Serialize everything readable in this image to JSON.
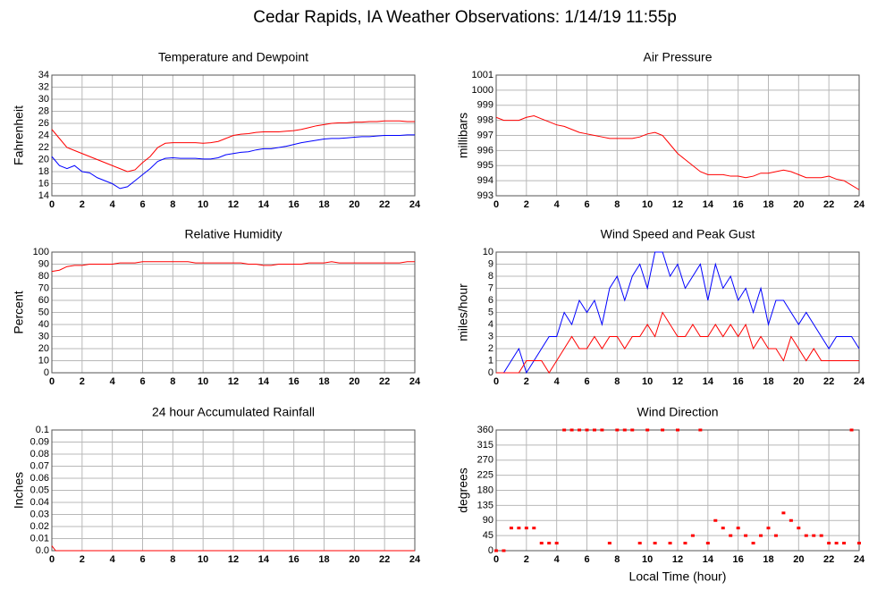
{
  "title": "Cedar Rapids, IA Weather Observations: 1/14/19 11:55p",
  "chart_data": [
    {
      "type": "line",
      "title": "Temperature and Dewpoint",
      "ylabel": "Fahrenheit",
      "x": [
        0,
        0.5,
        1,
        1.5,
        2,
        2.5,
        3,
        3.5,
        4,
        4.5,
        5,
        5.5,
        6,
        6.5,
        7,
        7.5,
        8,
        8.5,
        9,
        9.5,
        10,
        10.5,
        11,
        11.5,
        12,
        12.5,
        13,
        13.5,
        14,
        14.5,
        15,
        15.5,
        16,
        16.5,
        17,
        17.5,
        18,
        18.5,
        19,
        19.5,
        20,
        20.5,
        21,
        21.5,
        22,
        22.5,
        23,
        23.5,
        24
      ],
      "series": [
        {
          "name": "Temperature",
          "color": "#ff0000",
          "values": [
            25,
            23.5,
            22,
            21.5,
            21,
            20.5,
            20,
            19.5,
            19,
            18.5,
            18,
            18.3,
            19.5,
            20.5,
            22,
            22.7,
            22.8,
            22.8,
            22.8,
            22.8,
            22.7,
            22.8,
            23,
            23.5,
            24,
            24.2,
            24.3,
            24.5,
            24.6,
            24.6,
            24.6,
            24.7,
            24.8,
            25,
            25.3,
            25.6,
            25.8,
            26,
            26.1,
            26.1,
            26.2,
            26.2,
            26.3,
            26.3,
            26.4,
            26.4,
            26.4,
            26.3,
            26.3
          ]
        },
        {
          "name": "Dewpoint",
          "color": "#0000ff",
          "values": [
            20.5,
            19,
            18.5,
            19,
            18,
            17.8,
            17,
            16.5,
            16,
            15.2,
            15.5,
            16.5,
            17.5,
            18.5,
            19.7,
            20.2,
            20.3,
            20.2,
            20.2,
            20.2,
            20.1,
            20.1,
            20.3,
            20.8,
            21,
            21.2,
            21.3,
            21.6,
            21.8,
            21.8,
            22,
            22.2,
            22.5,
            22.8,
            23,
            23.2,
            23.4,
            23.5,
            23.5,
            23.6,
            23.7,
            23.8,
            23.8,
            23.9,
            24,
            24,
            24,
            24.1,
            24.1
          ]
        }
      ],
      "xlim": [
        0,
        24
      ],
      "xticks": [
        0,
        2,
        4,
        6,
        8,
        10,
        12,
        14,
        16,
        18,
        20,
        22,
        24
      ],
      "ylim": [
        14,
        34
      ],
      "yticks": [
        14,
        16,
        18,
        20,
        22,
        24,
        26,
        28,
        30,
        32,
        34
      ],
      "grid": true
    },
    {
      "type": "line",
      "title": "Air Pressure",
      "ylabel": "millibars",
      "x": [
        0,
        0.5,
        1,
        1.5,
        2,
        2.5,
        3,
        3.5,
        4,
        4.5,
        5,
        5.5,
        6,
        6.5,
        7,
        7.5,
        8,
        8.5,
        9,
        9.5,
        10,
        10.5,
        11,
        11.5,
        12,
        12.5,
        13,
        13.5,
        14,
        14.5,
        15,
        15.5,
        16,
        16.5,
        17,
        17.5,
        18,
        18.5,
        19,
        19.5,
        20,
        20.5,
        21,
        21.5,
        22,
        22.5,
        23,
        23.5,
        24
      ],
      "series": [
        {
          "name": "Pressure",
          "color": "#ff0000",
          "values": [
            998.2,
            998,
            998,
            998,
            998.2,
            998.3,
            998.1,
            997.9,
            997.7,
            997.6,
            997.4,
            997.2,
            997.1,
            997,
            996.9,
            996.8,
            996.8,
            996.8,
            996.8,
            996.9,
            997.1,
            997.2,
            997,
            996.4,
            995.8,
            995.4,
            995,
            994.6,
            994.4,
            994.4,
            994.4,
            994.3,
            994.3,
            994.2,
            994.3,
            994.5,
            994.5,
            994.6,
            994.7,
            994.6,
            994.4,
            994.2,
            994.2,
            994.2,
            994.3,
            994.1,
            994,
            993.7,
            993.4
          ]
        }
      ],
      "xlim": [
        0,
        24
      ],
      "xticks": [
        0,
        2,
        4,
        6,
        8,
        10,
        12,
        14,
        16,
        18,
        20,
        22,
        24
      ],
      "ylim": [
        993,
        1001
      ],
      "yticks": [
        993,
        994,
        995,
        996,
        997,
        998,
        999,
        1000,
        1001
      ],
      "grid": true
    },
    {
      "type": "line",
      "title": "Relative Humidity",
      "ylabel": "Percent",
      "x": [
        0,
        0.5,
        1,
        1.5,
        2,
        2.5,
        3,
        3.5,
        4,
        4.5,
        5,
        5.5,
        6,
        6.5,
        7,
        7.5,
        8,
        8.5,
        9,
        9.5,
        10,
        10.5,
        11,
        11.5,
        12,
        12.5,
        13,
        13.5,
        14,
        14.5,
        15,
        15.5,
        16,
        16.5,
        17,
        17.5,
        18,
        18.5,
        19,
        19.5,
        20,
        20.5,
        21,
        21.5,
        22,
        22.5,
        23,
        23.5,
        24
      ],
      "series": [
        {
          "name": "Humidity",
          "color": "#ff0000",
          "values": [
            84,
            85,
            88,
            89,
            89,
            90,
            90,
            90,
            90,
            91,
            91,
            91,
            92,
            92,
            92,
            92,
            92,
            92,
            92,
            91,
            91,
            91,
            91,
            91,
            91,
            91,
            90,
            90,
            89,
            89,
            90,
            90,
            90,
            90,
            91,
            91,
            91,
            92,
            91,
            91,
            91,
            91,
            91,
            91,
            91,
            91,
            91,
            92,
            92
          ]
        }
      ],
      "xlim": [
        0,
        24
      ],
      "xticks": [
        0,
        2,
        4,
        6,
        8,
        10,
        12,
        14,
        16,
        18,
        20,
        22,
        24
      ],
      "ylim": [
        0,
        100
      ],
      "yticks": [
        0,
        10,
        20,
        30,
        40,
        50,
        60,
        70,
        80,
        90,
        100
      ],
      "grid": true
    },
    {
      "type": "line",
      "title": "Wind Speed and Peak Gust",
      "ylabel": "miles/hour",
      "x": [
        0,
        0.5,
        1,
        1.5,
        2,
        2.5,
        3,
        3.5,
        4,
        4.5,
        5,
        5.5,
        6,
        6.5,
        7,
        7.5,
        8,
        8.5,
        9,
        9.5,
        10,
        10.5,
        11,
        11.5,
        12,
        12.5,
        13,
        13.5,
        14,
        14.5,
        15,
        15.5,
        16,
        16.5,
        17,
        17.5,
        18,
        18.5,
        19,
        19.5,
        20,
        20.5,
        21,
        21.5,
        22,
        22.5,
        23,
        23.5,
        24
      ],
      "series": [
        {
          "name": "Peak Gust",
          "color": "#0000ff",
          "values": [
            0,
            0,
            1,
            2,
            0,
            1,
            2,
            3,
            3,
            5,
            4,
            6,
            5,
            6,
            4,
            7,
            8,
            6,
            8,
            9,
            7,
            10,
            10,
            8,
            9,
            7,
            8,
            9,
            6,
            9,
            7,
            8,
            6,
            7,
            5,
            7,
            4,
            6,
            6,
            5,
            4,
            5,
            4,
            3,
            2,
            3,
            3,
            3,
            2
          ]
        },
        {
          "name": "Wind Speed",
          "color": "#ff0000",
          "values": [
            0,
            0,
            0,
            0,
            1,
            1,
            1,
            0,
            1,
            2,
            3,
            2,
            2,
            3,
            2,
            3,
            3,
            2,
            3,
            3,
            4,
            3,
            5,
            4,
            3,
            3,
            4,
            3,
            3,
            4,
            3,
            4,
            3,
            4,
            2,
            3,
            2,
            2,
            1,
            3,
            2,
            1,
            2,
            1,
            1,
            1,
            1,
            1,
            1
          ]
        }
      ],
      "xlim": [
        0,
        24
      ],
      "xticks": [
        0,
        2,
        4,
        6,
        8,
        10,
        12,
        14,
        16,
        18,
        20,
        22,
        24
      ],
      "ylim": [
        0,
        10
      ],
      "yticks": [
        0,
        1,
        2,
        3,
        4,
        5,
        6,
        7,
        8,
        9,
        10
      ],
      "grid": true
    },
    {
      "type": "line",
      "title": "24 hour Accumulated Rainfall",
      "ylabel": "Inches",
      "x": [
        0,
        0.25,
        24
      ],
      "series": [
        {
          "name": "Rainfall",
          "color": "#ff0000",
          "values": [
            0.004,
            0,
            0
          ]
        }
      ],
      "xlim": [
        0,
        24
      ],
      "xticks": [
        0,
        2,
        4,
        6,
        8,
        10,
        12,
        14,
        16,
        18,
        20,
        22,
        24
      ],
      "ylim": [
        0,
        0.1
      ],
      "yticks": [
        {
          "value": 0,
          "label": "0.0"
        },
        0.01,
        0.02,
        0.03,
        0.04,
        0.05,
        0.06,
        0.07,
        0.08,
        0.09,
        0.1
      ],
      "grid": true
    },
    {
      "type": "scatter",
      "title": "Wind Direction",
      "ylabel": "degrees",
      "xlabel": "Local Time (hour)",
      "x": [
        0,
        0.5,
        1,
        1.5,
        2,
        2.5,
        3,
        3.5,
        4,
        4.5,
        5,
        5.5,
        6,
        6.5,
        7,
        7.5,
        8,
        8.5,
        9,
        9.5,
        10,
        10.5,
        11,
        11.5,
        12,
        12.5,
        13,
        13.5,
        14,
        14.5,
        15,
        15.5,
        16,
        16.5,
        17,
        17.5,
        18,
        18.5,
        19,
        19.5,
        20,
        20.5,
        21,
        21.5,
        22,
        22.5,
        23,
        23.5,
        24
      ],
      "series": [
        {
          "name": "Direction",
          "color": "#ff0000",
          "values": [
            0,
            0,
            67.5,
            67.5,
            67.5,
            67.5,
            22.5,
            22.5,
            22.5,
            360,
            360,
            360,
            360,
            360,
            360,
            22.5,
            360,
            360,
            360,
            22.5,
            360,
            22.5,
            360,
            22.5,
            360,
            22.5,
            45,
            360,
            22.5,
            90,
            67.5,
            45,
            67.5,
            45,
            22.5,
            45,
            67.5,
            45,
            112.5,
            90,
            67.5,
            45,
            45,
            45,
            22.5,
            22.5,
            22.5,
            360,
            22.5
          ]
        }
      ],
      "xlim": [
        0,
        24
      ],
      "xticks": [
        0,
        2,
        4,
        6,
        8,
        10,
        12,
        14,
        16,
        18,
        20,
        22,
        24
      ],
      "ylim": [
        0,
        360
      ],
      "yticks": [
        0,
        45,
        90,
        135,
        180,
        225,
        270,
        315,
        360
      ],
      "grid": true
    }
  ]
}
